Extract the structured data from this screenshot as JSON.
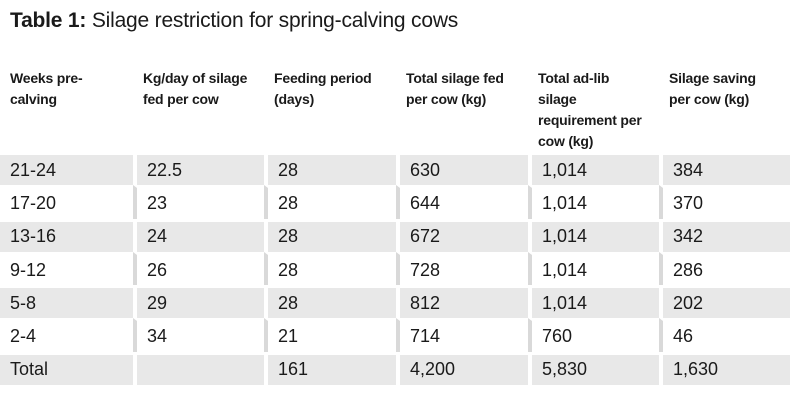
{
  "title": {
    "label": "Table 1:",
    "text": "Silage restriction for spring-calving cows"
  },
  "table": {
    "headers": [
      "Weeks pre-calving",
      "Kg/day of silage fed per cow",
      "Feeding period (days)",
      "Total silage fed per cow (kg)",
      "Total ad-lib silage requirement per cow (kg)",
      "Silage saving per cow (kg)"
    ],
    "rows": [
      [
        "21-24",
        "22.5",
        "28",
        "630",
        "1,014",
        "384"
      ],
      [
        "17-20",
        "23",
        "28",
        "644",
        "1,014",
        "370"
      ],
      [
        "13-16",
        "24",
        "28",
        "672",
        "1,014",
        "342"
      ],
      [
        "9-12",
        "26",
        "28",
        "728",
        "1,014",
        "286"
      ],
      [
        "5-8",
        "29",
        "28",
        "812",
        "1,014",
        "202"
      ],
      [
        "2-4",
        "34",
        "21",
        "714",
        "760",
        "46"
      ],
      [
        "Total",
        "",
        "161",
        "4,200",
        "5,830",
        "1,630"
      ]
    ]
  },
  "colors": {
    "shaded_row": "#e8e8e8",
    "text": "#1a1a1a"
  }
}
